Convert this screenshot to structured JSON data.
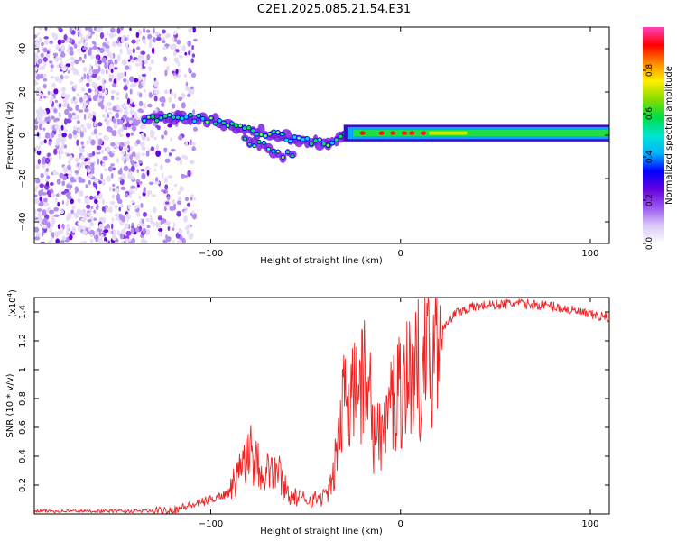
{
  "title": "C2E1.2025.085.21.54.E31",
  "chart_data": [
    {
      "type": "heatmap",
      "title": "C2E1.2025.085.21.54.E31",
      "xlabel": "Height of straight line (km)",
      "ylabel": "Frequency (Hz)",
      "xlim": [
        -193,
        110
      ],
      "ylim": [
        -50,
        50
      ],
      "xticks": [
        -100,
        0,
        100
      ],
      "yticks": [
        -40,
        -20,
        0,
        20,
        40
      ],
      "grid": false,
      "colorbar": {
        "label": "Normalized spectral amplitude",
        "range": [
          0,
          1
        ],
        "ticks": [
          0.0,
          0.2,
          0.4,
          0.6,
          0.8
        ],
        "tick_labels": [
          "0.0",
          "0.2",
          "0.4",
          "0.6",
          "0.8"
        ],
        "colors": [
          "#ffffff",
          "#d9c8f5",
          "#9955ee",
          "#6600dd",
          "#0000ff",
          "#00b4ff",
          "#00e5d0",
          "#00dd44",
          "#88dd00",
          "#ffee00",
          "#ff8800",
          "#ff0000",
          "#ff40c0"
        ]
      },
      "noise_region_x": [
        -193,
        -108
      ],
      "ridge": [
        {
          "x": -135,
          "f": 8
        },
        {
          "x": -125,
          "f": 8
        },
        {
          "x": -115,
          "f": 8
        },
        {
          "x": -105,
          "f": 8
        },
        {
          "x": -95,
          "f": 6
        },
        {
          "x": -88,
          "f": 4
        },
        {
          "x": -80,
          "f": 2
        },
        {
          "x": -72,
          "f": 1
        },
        {
          "x": -65,
          "f": 0
        },
        {
          "x": -55,
          "f": -2
        },
        {
          "x": -45,
          "f": -3
        },
        {
          "x": -38,
          "f": -4
        },
        {
          "x": -33,
          "f": -2
        },
        {
          "x": -28,
          "f": 1
        },
        {
          "x": -20,
          "f": 1
        },
        {
          "x": -10,
          "f": 1
        },
        {
          "x": 0,
          "f": 1
        },
        {
          "x": 20,
          "f": 1
        },
        {
          "x": 50,
          "f": 1
        },
        {
          "x": 80,
          "f": 1
        },
        {
          "x": 110,
          "f": 1
        }
      ],
      "branch": [
        {
          "x": -82,
          "f": -2
        },
        {
          "x": -72,
          "f": -5
        },
        {
          "x": -62,
          "f": -9
        },
        {
          "x": -55,
          "f": -10
        }
      ]
    },
    {
      "type": "line",
      "xlabel": "Height of straight line (km)",
      "ylabel": "SNR (10 * v/v)",
      "multiplier_label": "(x10",
      "multiplier_exp": "4",
      "xlim": [
        -193,
        110
      ],
      "ylim": [
        0,
        1.5
      ],
      "xticks": [
        -100,
        0,
        100
      ],
      "yticks": [
        0.2,
        0.4,
        0.6,
        0.8,
        1.0,
        1.2,
        1.4
      ],
      "ytick_labels": [
        "0.2",
        "0.4",
        "0.6",
        "0.8",
        "1",
        "1.2",
        "1.4"
      ],
      "line_color": "#ee2222",
      "envelope": [
        {
          "x": -193,
          "y": 0.02
        },
        {
          "x": -130,
          "y": 0.02
        },
        {
          "x": -120,
          "y": 0.03
        },
        {
          "x": -110,
          "y": 0.06
        },
        {
          "x": -100,
          "y": 0.1
        },
        {
          "x": -90,
          "y": 0.15
        },
        {
          "x": -85,
          "y": 0.3
        },
        {
          "x": -80,
          "y": 0.42
        },
        {
          "x": -76,
          "y": 0.35
        },
        {
          "x": -72,
          "y": 0.3
        },
        {
          "x": -65,
          "y": 0.3
        },
        {
          "x": -58,
          "y": 0.12
        },
        {
          "x": -48,
          "y": 0.1
        },
        {
          "x": -40,
          "y": 0.12
        },
        {
          "x": -36,
          "y": 0.2
        },
        {
          "x": -32,
          "y": 0.6
        },
        {
          "x": -28,
          "y": 0.85
        },
        {
          "x": -22,
          "y": 0.95
        },
        {
          "x": -18,
          "y": 0.75
        },
        {
          "x": -14,
          "y": 0.5
        },
        {
          "x": -8,
          "y": 0.6
        },
        {
          "x": -2,
          "y": 0.85
        },
        {
          "x": 4,
          "y": 0.95
        },
        {
          "x": 10,
          "y": 1.0
        },
        {
          "x": 15,
          "y": 1.05
        },
        {
          "x": 22,
          "y": 1.3
        },
        {
          "x": 30,
          "y": 1.4
        },
        {
          "x": 40,
          "y": 1.44
        },
        {
          "x": 60,
          "y": 1.46
        },
        {
          "x": 80,
          "y": 1.44
        },
        {
          "x": 100,
          "y": 1.38
        },
        {
          "x": 110,
          "y": 1.36
        }
      ],
      "spikes": [
        {
          "x": -83,
          "y": 0.48
        },
        {
          "x": -79,
          "y": 0.67
        },
        {
          "x": -76,
          "y": 0.55
        },
        {
          "x": -70,
          "y": 0.48
        },
        {
          "x": -64,
          "y": 0.4
        },
        {
          "x": -30,
          "y": 1.2
        },
        {
          "x": -26,
          "y": 1.08
        },
        {
          "x": -19,
          "y": 1.4
        },
        {
          "x": -16,
          "y": 1.22
        },
        {
          "x": -12,
          "y": 0.8
        },
        {
          "x": -5,
          "y": 1.1
        },
        {
          "x": 2,
          "y": 1.22
        },
        {
          "x": 8,
          "y": 1.28
        },
        {
          "x": 12,
          "y": 1.34
        },
        {
          "x": 18,
          "y": 1.3
        }
      ]
    }
  ]
}
